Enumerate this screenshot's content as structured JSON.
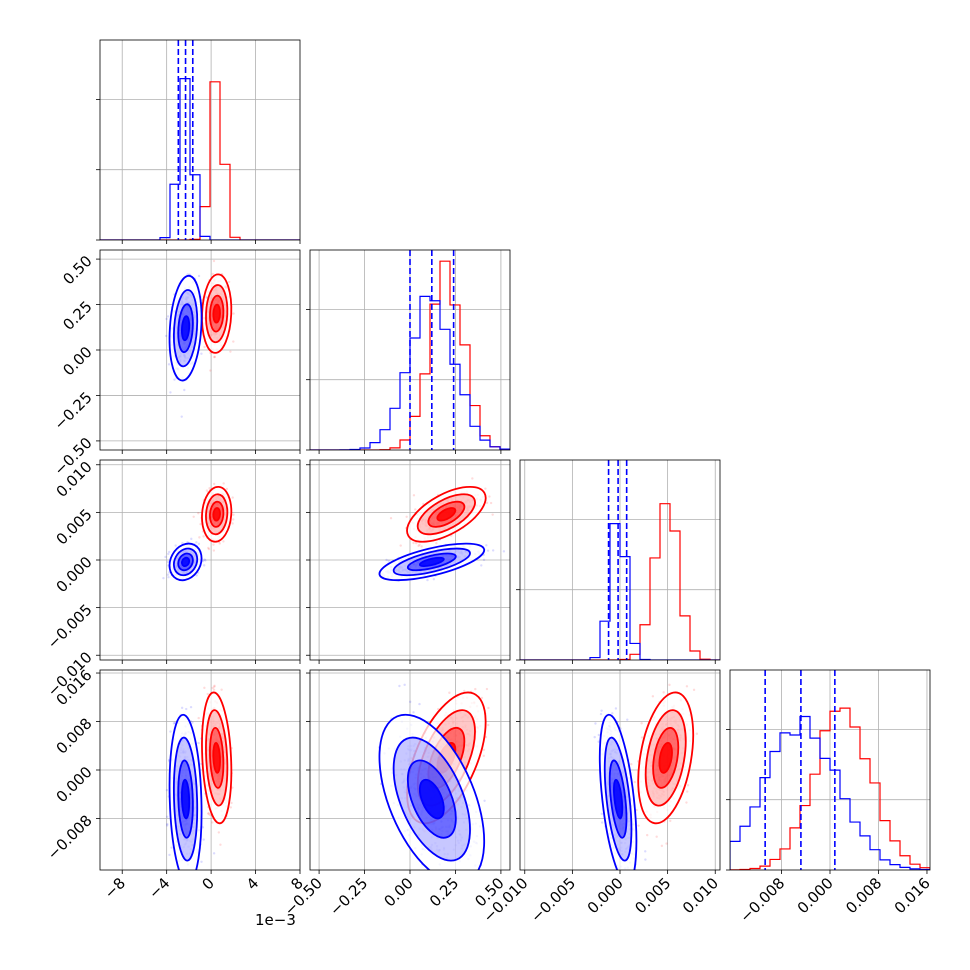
{
  "chart_data": {
    "type": "corner",
    "parameters": 4,
    "grid": true,
    "colors": {
      "red": "#ff0000",
      "blue": "#0000ff"
    },
    "ranges": [
      [
        -10,
        8
      ],
      [
        -0.55,
        0.55
      ],
      [
        -0.0105,
        0.0105
      ],
      [
        -0.0165,
        0.0165
      ]
    ],
    "ticks": [
      [
        -8,
        -4,
        0,
        4,
        8
      ],
      [
        -0.5,
        -0.25,
        0,
        0.25,
        0.5
      ],
      [
        -0.01,
        -0.005,
        0,
        0.005,
        0.01
      ],
      [
        -0.008,
        0,
        0.008,
        0.016
      ]
    ],
    "x_tick_labels": [
      [
        "−8",
        "−4",
        "0",
        "4",
        "8"
      ],
      [
        "−0.50",
        "−0.25",
        "0.00",
        "0.25",
        "0.50"
      ],
      [
        "−0.010",
        "−0.005",
        "0.000",
        "0.005",
        "0.010"
      ],
      [
        "−0.008",
        "0.000",
        "0.008",
        "0.016"
      ]
    ],
    "y_tick_labels": {
      "1": [
        "−0.50",
        "−0.25",
        "0.00",
        "0.25",
        "0.50"
      ],
      "2": [
        "−0.010",
        "−0.005",
        "0.000",
        "0.005",
        "0.010"
      ],
      "3": [
        "−0.008",
        "0.000",
        "0.008",
        "0.016"
      ]
    },
    "y_tick_values": {
      "1": [
        -0.5,
        -0.25,
        0,
        0.25,
        0.5
      ],
      "2": [
        -0.01,
        -0.005,
        0,
        0.005,
        0.01
      ],
      "3": [
        -0.008,
        0,
        0.008,
        0.016
      ]
    },
    "x_offset_text": "1e−3",
    "series": [
      {
        "color": "red",
        "mean": [
          0.5,
          0.2,
          0.0048,
          0.002
        ],
        "sd": [
          0.55,
          0.09,
          0.0012,
          0.0045
        ],
        "corr": {
          "1-0": 0.1,
          "2-0": 0.1,
          "2-1": 0.6,
          "3-0": -0.2,
          "3-1": 0.55,
          "3-2": 0.35
        },
        "hist_peaks": [
          0.84,
          0.88,
          0.82,
          0.78
        ]
      },
      {
        "color": "blue",
        "mean": [
          -2.3,
          0.12,
          -0.0002,
          -0.0048
        ],
        "sd": [
          0.6,
          0.12,
          0.0008,
          0.0058
        ],
        "corr": {
          "1-0": 0.2,
          "2-0": 0.2,
          "2-1": 0.65,
          "3-0": -0.15,
          "3-1": -0.5,
          "3-2": -0.5
        },
        "hist_peaks": [
          0.82,
          0.76,
          0.78,
          0.72
        ]
      }
    ],
    "quantile_lines": [
      [
        -2.95,
        -2.3,
        -1.65
      ],
      [
        0.0,
        0.12,
        0.24
      ],
      [
        -0.0012,
        -0.0002,
        0.0007
      ],
      [
        -0.0107,
        -0.0048,
        0.0008
      ]
    ]
  }
}
